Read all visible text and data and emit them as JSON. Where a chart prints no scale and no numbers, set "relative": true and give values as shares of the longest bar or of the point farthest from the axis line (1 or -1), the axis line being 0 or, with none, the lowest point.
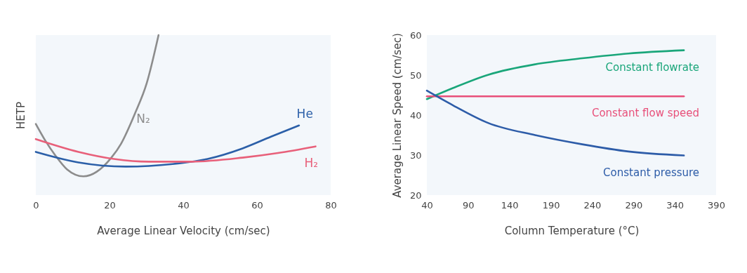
{
  "chart_data": [
    {
      "type": "line",
      "relative": true,
      "xlabel": "Average Linear Velocity (cm/sec)",
      "ylabel": "HETP",
      "xlim": [
        0,
        80
      ],
      "xticks": [
        0,
        20,
        40,
        60,
        80
      ],
      "grid": false,
      "legend": false,
      "marker": "none",
      "line_style": "solid",
      "series": [
        {
          "name": "N₂",
          "color": "#8c8c8c",
          "x": [
            0,
            2.7,
            5.3,
            8.5,
            12.9,
            20.5,
            23.1,
            26.9,
            30.1,
            33.3
          ],
          "values": [
            0.445,
            0.336,
            0.248,
            0.16,
            0.117,
            0.234,
            0.32,
            0.51,
            0.7,
            1.0
          ]
        },
        {
          "name": "He",
          "color": "#2b5fa8",
          "x": [
            0,
            11.6,
            24.4,
            37.1,
            46.6,
            56.1,
            63.8,
            71.4
          ],
          "values": [
            0.27,
            0.204,
            0.178,
            0.194,
            0.226,
            0.292,
            0.365,
            0.435
          ]
        },
        {
          "name": "H₂",
          "color": "#e8607a",
          "x": [
            0,
            11.6,
            21.2,
            30.7,
            42.2,
            56.1,
            65.7,
            75.9
          ],
          "values": [
            0.35,
            0.27,
            0.226,
            0.209,
            0.209,
            0.234,
            0.263,
            0.304
          ]
        }
      ]
    },
    {
      "type": "line",
      "xlabel": "Column Temperature (°C)",
      "ylabel": "Average Linear Speed (cm/sec)",
      "xlim": [
        40,
        390
      ],
      "xticks": [
        40,
        90,
        140,
        190,
        240,
        290,
        340,
        390
      ],
      "ylim": [
        20,
        60
      ],
      "yticks": [
        20,
        30,
        40,
        50,
        60
      ],
      "grid": false,
      "legend": false,
      "marker": "none",
      "line_style": "solid",
      "series": [
        {
          "name": "Constant flowrate",
          "color": "#1aa67a",
          "x": [
            40,
            72,
            114.5,
            171,
            228,
            284,
            351
          ],
          "values": [
            44.0,
            46.8,
            50.1,
            52.7,
            54.2,
            55.4,
            56.2
          ]
        },
        {
          "name": "Constant flow speed",
          "color": "#e8507a",
          "x": [
            40,
            351
          ],
          "values": [
            44.7,
            44.7
          ]
        },
        {
          "name": "Constant pressure",
          "color": "#2d5ca8",
          "x": [
            40,
            72,
            114.5,
            171,
            228,
            284,
            351
          ],
          "values": [
            46.1,
            42.4,
            38.0,
            35.0,
            32.7,
            30.9,
            29.9
          ]
        }
      ]
    }
  ]
}
